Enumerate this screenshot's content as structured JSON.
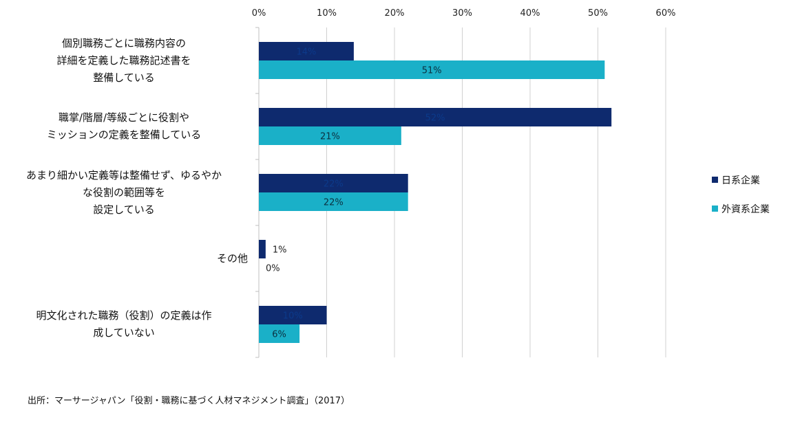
{
  "chart_data": {
    "type": "bar",
    "orientation": "horizontal",
    "categories": [
      [
        "個別職務ごとに職務内容の",
        "詳細を定義した職務記述書を",
        "整備している"
      ],
      [
        "職掌/階層/等級ごとに役割や",
        "ミッションの定義を整備している"
      ],
      [
        "あまり細かい定義等は整備せず、ゆるやか",
        "な役割の範囲等を",
        "設定している"
      ],
      [
        "その他"
      ],
      [
        "明文化された職務（役割）の定義は作",
        "成していない"
      ]
    ],
    "series": [
      {
        "name": "日系企業",
        "color": "#0e2a6e",
        "values": [
          14,
          52,
          22,
          1,
          10
        ],
        "labels": [
          "14%",
          "52%",
          "22%",
          "1%",
          "10%"
        ]
      },
      {
        "name": "外資系企業",
        "color": "#1ab0c8",
        "values": [
          51,
          21,
          22,
          0,
          6
        ],
        "labels": [
          "51%",
          "21%",
          "22%",
          "0%",
          "6%"
        ]
      }
    ],
    "xlim": [
      0,
      60
    ],
    "xticks": [
      "0%",
      "10%",
      "20%",
      "30%",
      "40%",
      "50%",
      "60%"
    ],
    "grid": true,
    "legend": "right"
  },
  "source": "出所：マーサージャパン「役割・職務に基づく人材マネジメント調査」（2017）"
}
